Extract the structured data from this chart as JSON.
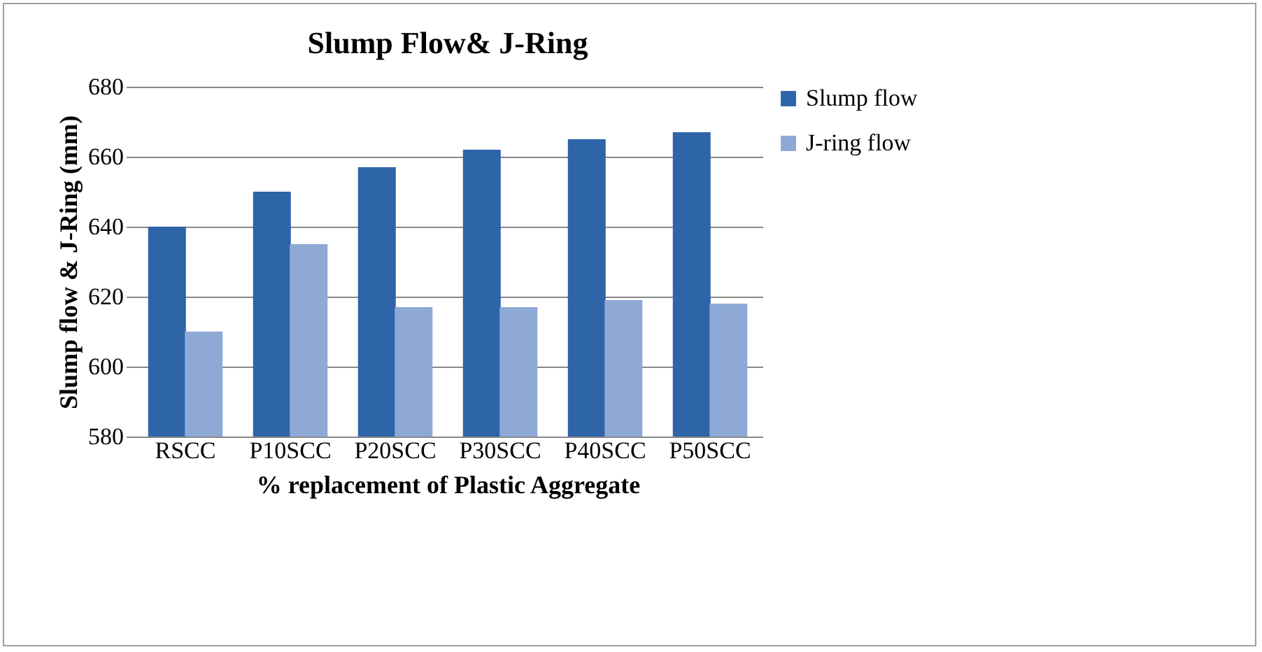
{
  "chart_data": {
    "type": "bar",
    "title": "Slump Flow& J-Ring",
    "xlabel": "% replacement of Plastic Aggregate",
    "ylabel": "Slump flow & J-Ring (mm)",
    "categories": [
      "RSCC",
      "P10SCC",
      "P20SCC",
      "P30SCC",
      "P40SCC",
      "P50SCC"
    ],
    "series": [
      {
        "name": "Slump flow",
        "color": "#2e64a8",
        "values": [
          640,
          650,
          657,
          662,
          665,
          667
        ]
      },
      {
        "name": "J-ring flow",
        "color": "#8ea9d6",
        "values": [
          610,
          635,
          617,
          617,
          619,
          618
        ]
      }
    ],
    "ylim": [
      580,
      680
    ],
    "yticks": [
      580,
      600,
      620,
      640,
      660,
      680
    ],
    "grid": "y",
    "legend": "right"
  }
}
